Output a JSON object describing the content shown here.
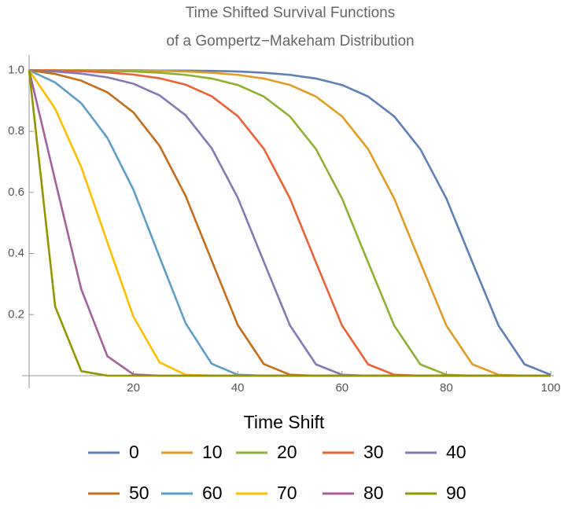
{
  "chart_data": {
    "type": "line",
    "title": "Time Shifted Survival Functions",
    "subtitle": "of a Gompertz−Makeham Distribution",
    "legend_title": "Time Shift",
    "x": [
      0,
      5,
      10,
      15,
      20,
      25,
      30,
      35,
      40,
      45,
      50,
      55,
      60,
      65,
      70,
      75,
      80,
      85,
      90,
      95,
      100
    ],
    "series": [
      {
        "name": "0",
        "color": "#5e81b5",
        "values": [
          1,
          1,
          1,
          1,
          1,
          0.999,
          0.999,
          0.998,
          0.996,
          0.992,
          0.985,
          0.973,
          0.952,
          0.914,
          0.849,
          0.742,
          0.58,
          0.371,
          0.164,
          0.037,
          0.003
        ]
      },
      {
        "name": "10",
        "color": "#e19c24",
        "values": [
          1,
          1,
          1,
          0.999,
          0.999,
          0.998,
          0.996,
          0.992,
          0.985,
          0.973,
          0.952,
          0.914,
          0.849,
          0.742,
          0.58,
          0.371,
          0.164,
          0.037,
          0.003,
          0,
          0
        ]
      },
      {
        "name": "20",
        "color": "#8fb032",
        "values": [
          1,
          0.999,
          0.999,
          0.998,
          0.996,
          0.992,
          0.985,
          0.973,
          0.952,
          0.914,
          0.849,
          0.742,
          0.58,
          0.371,
          0.164,
          0.037,
          0.003,
          0,
          0,
          0,
          0
        ]
      },
      {
        "name": "30",
        "color": "#eb6235",
        "values": [
          1,
          0.999,
          0.997,
          0.993,
          0.986,
          0.974,
          0.953,
          0.915,
          0.85,
          0.743,
          0.581,
          0.371,
          0.164,
          0.037,
          0.003,
          0,
          0,
          0,
          0,
          0,
          0
        ]
      },
      {
        "name": "40",
        "color": "#8778b3",
        "values": [
          1,
          0.996,
          0.989,
          0.977,
          0.956,
          0.918,
          0.853,
          0.745,
          0.583,
          0.373,
          0.165,
          0.037,
          0.003,
          0,
          0,
          0,
          0,
          0,
          0,
          0,
          0
        ]
      },
      {
        "name": "50",
        "color": "#c56e1a",
        "values": [
          1,
          0.988,
          0.966,
          0.928,
          0.862,
          0.753,
          0.589,
          0.377,
          0.166,
          0.038,
          0.003,
          0,
          0,
          0,
          0,
          0,
          0,
          0,
          0,
          0,
          0
        ]
      },
      {
        "name": "60",
        "color": "#5d9ec7",
        "values": [
          1,
          0.96,
          0.892,
          0.779,
          0.609,
          0.389,
          0.172,
          0.039,
          0.003,
          0,
          0,
          0,
          0,
          0,
          0,
          0,
          0,
          0,
          0,
          0,
          0
        ]
      },
      {
        "name": "70",
        "color": "#ffbf00",
        "values": [
          1,
          0.874,
          0.683,
          0.437,
          0.193,
          0.044,
          0.003,
          0,
          0,
          0,
          0,
          0,
          0,
          0,
          0,
          0,
          0,
          0,
          0,
          0,
          0
        ]
      },
      {
        "name": "80",
        "color": "#a5609d",
        "values": [
          1,
          0.639,
          0.283,
          0.064,
          0.004,
          0,
          0,
          0,
          0,
          0,
          0,
          0,
          0,
          0,
          0,
          0,
          0,
          0,
          0,
          0,
          0
        ]
      },
      {
        "name": "90",
        "color": "#929600",
        "values": [
          1,
          0.226,
          0.015,
          0,
          0,
          0,
          0,
          0,
          0,
          0,
          0,
          0,
          0,
          0,
          0,
          0,
          0,
          0,
          0,
          0,
          0
        ]
      }
    ],
    "xlim": [
      0,
      100
    ],
    "ylim": [
      0,
      1.05
    ],
    "xticks": [
      20,
      40,
      60,
      80,
      100
    ],
    "yticks": [
      0.2,
      0.4,
      0.6,
      0.8,
      {
        "value": 1,
        "label": "1.0"
      }
    ]
  }
}
